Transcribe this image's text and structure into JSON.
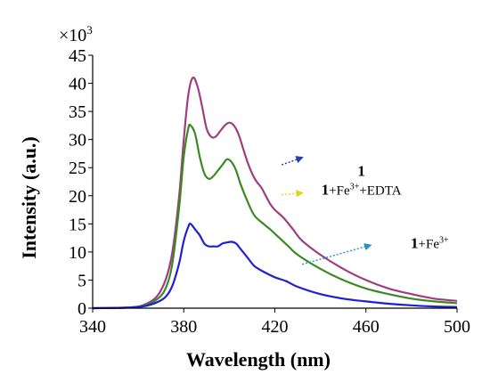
{
  "chart_data": {
    "type": "line",
    "xlabel": "Wavelength (nm)",
    "ylabel": "Intensity (a.u.)",
    "y_multiplier": {
      "base": "×10",
      "exponent": "3"
    },
    "xlim": [
      340,
      500
    ],
    "ylim": [
      0,
      45
    ],
    "x_ticks": [
      340,
      380,
      420,
      460,
      500
    ],
    "y_ticks": [
      0,
      5,
      10,
      15,
      20,
      25,
      30,
      35,
      40,
      45
    ],
    "grid": false,
    "series": [
      {
        "name": "1",
        "color": "#9e3e80",
        "points": [
          [
            340,
            0
          ],
          [
            355,
            0.1
          ],
          [
            362,
            0.5
          ],
          [
            368,
            2
          ],
          [
            372,
            5
          ],
          [
            375,
            10
          ],
          [
            378,
            20
          ],
          [
            380,
            30
          ],
          [
            382,
            38
          ],
          [
            384,
            41
          ],
          [
            386,
            39.5
          ],
          [
            388,
            36
          ],
          [
            390,
            32
          ],
          [
            392,
            30.5
          ],
          [
            394,
            30.5
          ],
          [
            396,
            31.5
          ],
          [
            398,
            32.5
          ],
          [
            400,
            33
          ],
          [
            402,
            32.5
          ],
          [
            404,
            31
          ],
          [
            406,
            28.5
          ],
          [
            408,
            26
          ],
          [
            410,
            24
          ],
          [
            412,
            22.5
          ],
          [
            414,
            21.5
          ],
          [
            416,
            20
          ],
          [
            418,
            18.5
          ],
          [
            420,
            17.5
          ],
          [
            424,
            16
          ],
          [
            428,
            14
          ],
          [
            432,
            12
          ],
          [
            440,
            9.5
          ],
          [
            450,
            7
          ],
          [
            460,
            5
          ],
          [
            470,
            3.5
          ],
          [
            480,
            2.5
          ],
          [
            490,
            1.7
          ],
          [
            500,
            1.3
          ]
        ]
      },
      {
        "name": "1+Fe3++EDTA",
        "color": "#3a8a22",
        "points": [
          [
            340,
            0
          ],
          [
            355,
            0.1
          ],
          [
            362,
            0.4
          ],
          [
            368,
            1.5
          ],
          [
            372,
            3.5
          ],
          [
            375,
            8
          ],
          [
            378,
            18
          ],
          [
            380,
            27
          ],
          [
            382,
            32
          ],
          [
            383,
            32.5
          ],
          [
            385,
            31
          ],
          [
            387,
            27
          ],
          [
            389,
            24
          ],
          [
            391,
            23
          ],
          [
            393,
            23.5
          ],
          [
            395,
            24.5
          ],
          [
            397,
            25.5
          ],
          [
            399,
            26.5
          ],
          [
            401,
            26
          ],
          [
            403,
            24.5
          ],
          [
            405,
            22
          ],
          [
            408,
            19
          ],
          [
            411,
            16.5
          ],
          [
            415,
            15
          ],
          [
            418,
            14
          ],
          [
            422,
            12.5
          ],
          [
            426,
            11
          ],
          [
            430,
            9.5
          ],
          [
            440,
            7
          ],
          [
            450,
            5
          ],
          [
            460,
            3.5
          ],
          [
            470,
            2.5
          ],
          [
            480,
            1.7
          ],
          [
            490,
            1.2
          ],
          [
            500,
            0.9
          ]
        ]
      },
      {
        "name": "1+Fe3+",
        "color": "#1f1fd6",
        "points": [
          [
            340,
            0
          ],
          [
            355,
            0.1
          ],
          [
            362,
            0.3
          ],
          [
            368,
            1
          ],
          [
            372,
            2
          ],
          [
            375,
            4
          ],
          [
            378,
            8
          ],
          [
            380,
            12
          ],
          [
            382,
            14.5
          ],
          [
            383,
            15
          ],
          [
            385,
            14
          ],
          [
            387,
            13
          ],
          [
            389,
            11.5
          ],
          [
            391,
            11
          ],
          [
            393,
            11
          ],
          [
            395,
            11
          ],
          [
            397,
            11.5
          ],
          [
            399,
            11.7
          ],
          [
            401,
            11.8
          ],
          [
            403,
            11.5
          ],
          [
            405,
            10.5
          ],
          [
            408,
            9
          ],
          [
            411,
            7.5
          ],
          [
            415,
            6.5
          ],
          [
            420,
            5.5
          ],
          [
            425,
            4.8
          ],
          [
            430,
            3.8
          ],
          [
            440,
            2.5
          ],
          [
            450,
            1.7
          ],
          [
            460,
            1.2
          ],
          [
            470,
            0.8
          ],
          [
            480,
            0.5
          ],
          [
            490,
            0.3
          ],
          [
            500,
            0.2
          ]
        ]
      }
    ],
    "annotations": [
      {
        "bold": "1",
        "rest": "",
        "sup": "",
        "tail": "",
        "color": "#2a3aa8",
        "text_at": [
          458,
          23.5
        ],
        "arrow_from": [
          423,
          25.5
        ],
        "arrow_to": [
          432,
          26.8
        ]
      },
      {
        "bold": "1",
        "rest": "+Fe",
        "sup": "3+",
        "tail": "+EDTA",
        "color": "#ddd520",
        "text_at": [
          458,
          20.2
        ],
        "arrow_from": [
          423,
          20.2
        ],
        "arrow_to": [
          432,
          20.5
        ]
      },
      {
        "bold": "1",
        "rest": "+Fe",
        "sup": "3+",
        "tail": "",
        "color": "#2b8fc4",
        "text_at": [
          488,
          10.7
        ],
        "arrow_from": [
          432,
          7.8
        ],
        "arrow_to": [
          462,
          11.2
        ]
      }
    ]
  }
}
